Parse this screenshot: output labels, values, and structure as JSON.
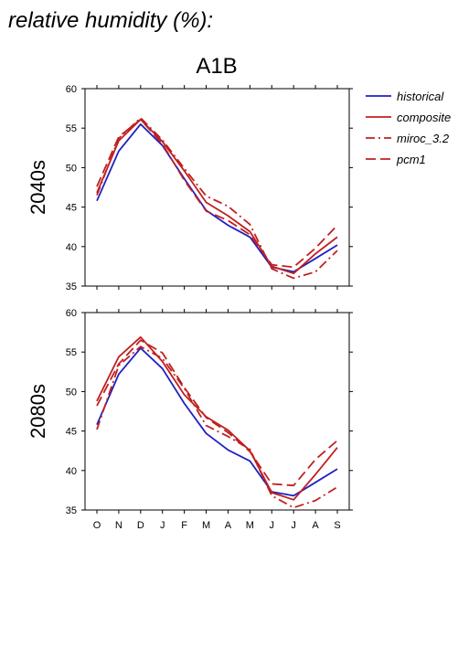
{
  "heading": "relative humidity (%):",
  "scenario": "A1B",
  "colors": {
    "historical": "#2020c0",
    "composite": "#c02020",
    "miroc_3.2": "#c02020",
    "pcm1": "#c02020"
  },
  "legend": [
    {
      "label": "historical",
      "style": "solid",
      "color": "#2020c0"
    },
    {
      "label": "composite",
      "style": "solid",
      "color": "#c02020"
    },
    {
      "label": "miroc_3.2",
      "style": "dashdot",
      "color": "#c02020"
    },
    {
      "label": "pcm1",
      "style": "dash",
      "color": "#c02020"
    }
  ],
  "chart_data": [
    {
      "type": "line",
      "panel_label": "2040s",
      "categories": [
        "O",
        "N",
        "D",
        "J",
        "F",
        "M",
        "A",
        "M",
        "J",
        "J",
        "A",
        "S"
      ],
      "ylim": [
        35,
        60
      ],
      "yticks": [
        35,
        40,
        45,
        50,
        55,
        60
      ],
      "grid": false,
      "series": [
        {
          "name": "historical",
          "style": "solid",
          "color": "#2020c0",
          "values": [
            45.8,
            52.1,
            55.5,
            52.8,
            48.6,
            44.6,
            42.7,
            41.2,
            37.4,
            36.8,
            38.5,
            40.2
          ]
        },
        {
          "name": "composite",
          "style": "solid",
          "color": "#c02020",
          "values": [
            46.8,
            53.4,
            56.1,
            53.3,
            49.6,
            45.6,
            43.9,
            41.9,
            37.5,
            36.6,
            39.1,
            41.2
          ]
        },
        {
          "name": "miroc_3.2",
          "style": "dashdot",
          "color": "#c02020",
          "values": [
            46.5,
            53.7,
            56.3,
            53.5,
            49.9,
            46.4,
            45.1,
            42.8,
            37.2,
            36.0,
            36.8,
            39.5
          ]
        },
        {
          "name": "pcm1",
          "style": "dash",
          "color": "#c02020",
          "values": [
            47.6,
            53.9,
            56.1,
            53.0,
            48.4,
            44.5,
            43.3,
            41.5,
            37.7,
            37.4,
            39.8,
            42.7
          ]
        }
      ]
    },
    {
      "type": "line",
      "panel_label": "2080s",
      "categories": [
        "O",
        "N",
        "D",
        "J",
        "F",
        "M",
        "A",
        "M",
        "J",
        "J",
        "A",
        "S"
      ],
      "ylim": [
        35,
        60
      ],
      "yticks": [
        35,
        40,
        45,
        50,
        55,
        60
      ],
      "grid": false,
      "series": [
        {
          "name": "historical",
          "style": "solid",
          "color": "#2020c0",
          "values": [
            45.8,
            52.2,
            55.5,
            52.9,
            48.5,
            44.7,
            42.6,
            41.2,
            37.3,
            36.8,
            38.5,
            40.2
          ]
        },
        {
          "name": "composite",
          "style": "solid",
          "color": "#c02020",
          "values": [
            48.8,
            54.4,
            56.9,
            53.8,
            49.6,
            46.8,
            45.1,
            42.5,
            37.2,
            36.3,
            39.5,
            42.9
          ]
        },
        {
          "name": "miroc_3.2",
          "style": "dashdot",
          "color": "#c02020",
          "values": [
            45.2,
            53.3,
            55.7,
            54.2,
            50.4,
            45.7,
            44.3,
            42.7,
            36.8,
            35.3,
            36.2,
            37.9
          ]
        },
        {
          "name": "pcm1",
          "style": "dash",
          "color": "#c02020",
          "values": [
            48.2,
            53.5,
            56.5,
            54.9,
            50.5,
            46.7,
            44.8,
            42.4,
            38.3,
            38.1,
            41.4,
            43.8
          ]
        }
      ]
    }
  ]
}
